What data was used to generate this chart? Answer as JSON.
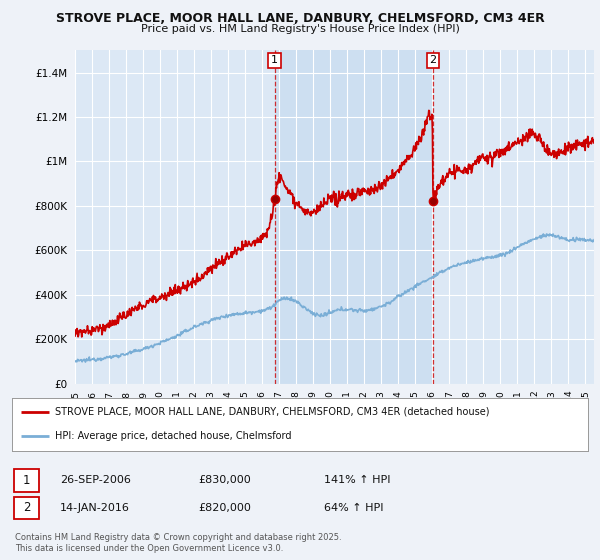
{
  "title1": "STROVE PLACE, MOOR HALL LANE, DANBURY, CHELMSFORD, CM3 4ER",
  "title2": "Price paid vs. HM Land Registry's House Price Index (HPI)",
  "ylim": [
    0,
    1500000
  ],
  "yticks": [
    0,
    200000,
    400000,
    600000,
    800000,
    1000000,
    1200000,
    1400000
  ],
  "ytick_labels": [
    "£0",
    "£200K",
    "£400K",
    "£600K",
    "£800K",
    "£1M",
    "£1.2M",
    "£1.4M"
  ],
  "background_color": "#eef2f8",
  "plot_bg_color": "#dce8f5",
  "shade_color": "#c8dcf0",
  "grid_color": "#ffffff",
  "red_color": "#cc0000",
  "blue_color": "#7aaed6",
  "marker1_x": 2006.73,
  "marker1_price": 830000,
  "marker2_x": 2016.04,
  "marker2_price": 820000,
  "legend_line1": "STROVE PLACE, MOOR HALL LANE, DANBURY, CHELMSFORD, CM3 4ER (detached house)",
  "legend_line2": "HPI: Average price, detached house, Chelmsford",
  "note1_date": "26-SEP-2006",
  "note1_price": "£830,000",
  "note1_hpi": "141% ↑ HPI",
  "note2_date": "14-JAN-2016",
  "note2_price": "£820,000",
  "note2_hpi": "64% ↑ HPI",
  "footer": "Contains HM Land Registry data © Crown copyright and database right 2025.\nThis data is licensed under the Open Government Licence v3.0.",
  "xmin": 1995,
  "xmax": 2025.5
}
